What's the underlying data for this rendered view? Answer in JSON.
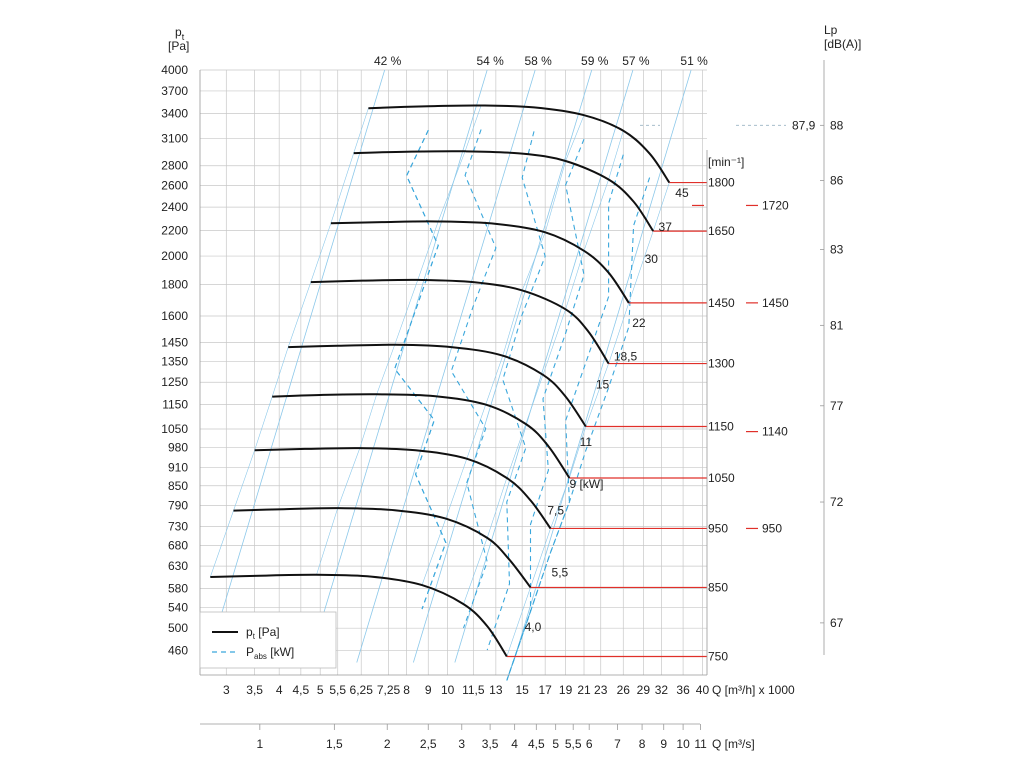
{
  "chart_data": {
    "type": "line",
    "title": "",
    "y_axis": {
      "label_main": "p",
      "label_sub": "t",
      "unit": "[Pa]",
      "scale": "log",
      "ticks": [
        4000,
        3700,
        3400,
        3100,
        2800,
        2600,
        2400,
        2200,
        2000,
        1800,
        1600,
        1450,
        1350,
        1250,
        1150,
        1050,
        980,
        910,
        850,
        790,
        730,
        680,
        630,
        580,
        540,
        500,
        460
      ],
      "range": [
        420,
        4000
      ]
    },
    "x_axis_flow_m3h": {
      "label": "Q [m³/h] x 1000",
      "scale": "log",
      "ticks": [
        "3",
        "3,5",
        "4",
        "4,5",
        "5",
        "5,5",
        "6,25",
        "7,25",
        "8",
        "9",
        "10",
        "11,5",
        "13",
        "15",
        "17",
        "19",
        "21",
        "23",
        "26",
        "29",
        "32",
        "36",
        "40"
      ],
      "tick_values": [
        3,
        3.5,
        4,
        4.5,
        5,
        5.5,
        6.25,
        7.25,
        8,
        9,
        10,
        11.5,
        13,
        15,
        17,
        19,
        21,
        23,
        26,
        29,
        32,
        36,
        40
      ],
      "range": [
        2.6,
        41
      ]
    },
    "x_axis_flow_m3s": {
      "label": "Q [m³/s]",
      "ticks": [
        "1",
        "1,5",
        "2",
        "2,5",
        "3",
        "3,5",
        "4",
        "4,5",
        "5",
        "5,5",
        "6",
        "7",
        "8",
        "9",
        "10",
        "11"
      ],
      "tick_values": [
        1,
        1.5,
        2,
        2.5,
        3,
        3.5,
        4,
        4.5,
        5,
        5.5,
        6,
        7,
        8,
        9,
        10,
        11
      ]
    },
    "right_axis_lp": {
      "label": "Lp",
      "unit": "[dB(A)]",
      "ticks": [
        "88",
        "86",
        "83",
        "81",
        "77",
        "72",
        "67"
      ],
      "tick_pa": [
        3255,
        2650,
        2050,
        1545,
        1145,
        800,
        510
      ]
    },
    "rpm_axis": {
      "label": "[min⁻¹]",
      "values": [
        "1800",
        "1650",
        "1450",
        "1300",
        "1150",
        "1050",
        "950",
        "850",
        "750"
      ],
      "end_pa": [
        2630,
        2195,
        1680,
        1340,
        1060,
        875,
        725,
        582,
        450
      ],
      "side_values": [
        "1720",
        "1450",
        "1140",
        "950"
      ],
      "side_pa": [
        2415,
        1680,
        1040,
        725
      ],
      "lp_marker": "87,9",
      "lp_marker_pa": 3255
    },
    "series": [
      {
        "name": "p_t [Pa]",
        "type": "pressure",
        "speed": "1800",
        "x": [
          6.5,
          9,
          12,
          16,
          21,
          26,
          30,
          33.4
        ],
        "y": [
          3470,
          3495,
          3505,
          3480,
          3380,
          3190,
          2930,
          2630
        ]
      },
      {
        "name": "p_t [Pa]",
        "type": "pressure",
        "speed": "1650",
        "x": [
          6,
          8,
          11,
          15,
          19,
          24,
          27.5,
          30.6
        ],
        "y": [
          2935,
          2950,
          2955,
          2930,
          2850,
          2660,
          2450,
          2195
        ]
      },
      {
        "name": "p_t [Pa]",
        "type": "pressure",
        "speed": "1450",
        "x": [
          5.3,
          7,
          9.5,
          13,
          17,
          21,
          24,
          26.8
        ],
        "y": [
          2260,
          2270,
          2275,
          2255,
          2185,
          2040,
          1880,
          1680
        ]
      },
      {
        "name": "p_t [Pa]",
        "type": "pressure",
        "speed": "1300",
        "x": [
          4.75,
          6.3,
          8.5,
          11.5,
          15,
          19,
          21.5,
          24
        ],
        "y": [
          1815,
          1825,
          1830,
          1815,
          1760,
          1640,
          1510,
          1340
        ]
      },
      {
        "name": "p_t [Pa]",
        "type": "pressure",
        "speed": "1150",
        "x": [
          4.2,
          5.5,
          7.5,
          10.2,
          13.5,
          16.8,
          19,
          21.2
        ],
        "y": [
          1425,
          1432,
          1437,
          1425,
          1380,
          1285,
          1185,
          1060
        ]
      },
      {
        "name": "p_t [Pa]",
        "type": "pressure",
        "speed": "1050",
        "x": [
          3.85,
          5,
          6.8,
          9.3,
          12.3,
          15.3,
          17.3,
          19.4
        ],
        "y": [
          1185,
          1192,
          1195,
          1187,
          1150,
          1070,
          985,
          875
        ]
      },
      {
        "name": "p_t [Pa]",
        "type": "pressure",
        "speed": "950",
        "x": [
          3.5,
          4.6,
          6.2,
          8.4,
          11.1,
          13.8,
          15.7,
          17.5
        ],
        "y": [
          970,
          975,
          978,
          970,
          940,
          875,
          805,
          725
        ]
      },
      {
        "name": "p_t [Pa]",
        "type": "pressure",
        "speed": "850",
        "x": [
          3.12,
          4.1,
          5.5,
          7.5,
          9.9,
          12.4,
          14,
          15.7
        ],
        "y": [
          775,
          779,
          782,
          776,
          752,
          700,
          645,
          582
        ]
      },
      {
        "name": "p_t [Pa]",
        "type": "pressure",
        "speed": "750",
        "x": [
          2.75,
          3.6,
          4.9,
          6.6,
          8.7,
          10.9,
          12.4,
          13.8
        ],
        "y": [
          605,
          608,
          610,
          606,
          587,
          547,
          504,
          450
        ]
      }
    ],
    "efficiency_lines": [
      {
        "label": "42 %",
        "start": [
          2.7,
          440
        ],
        "end": [
          7.1,
          4000
        ]
      },
      {
        "label": "54 %",
        "start": [
          4.7,
          440
        ],
        "end": [
          12.4,
          4000
        ]
      },
      {
        "label": "58 %",
        "start": [
          6.1,
          440
        ],
        "end": [
          16.1,
          4000
        ]
      },
      {
        "label": "59 %",
        "start": [
          8.3,
          440
        ],
        "end": [
          21.9,
          4000
        ]
      },
      {
        "label": "57 %",
        "start": [
          10.4,
          440
        ],
        "end": [
          27.4,
          4000
        ]
      },
      {
        "label": "51 %",
        "start": [
          14.3,
          440
        ],
        "end": [
          37.6,
          4000
        ]
      }
    ],
    "power_labels": [
      {
        "label": "45",
        "x": 34.5,
        "y": 2530
      },
      {
        "label": "37",
        "x": 31.5,
        "y": 2230
      },
      {
        "label": "30",
        "x": 29.2,
        "y": 1980
      },
      {
        "label": "22",
        "x": 27.3,
        "y": 1560
      },
      {
        "label": "18,5",
        "x": 24.7,
        "y": 1375
      },
      {
        "label": "15",
        "x": 22.4,
        "y": 1240
      },
      {
        "label": "11",
        "x": 20.5,
        "y": 1000
      },
      {
        "label": "9 [kW]",
        "x": 19.4,
        "y": 855
      },
      {
        "label": "7,5",
        "x": 17.2,
        "y": 775
      },
      {
        "label": "5,5",
        "x": 17.6,
        "y": 615
      },
      {
        "label": "4,0",
        "x": 15.2,
        "y": 502
      }
    ],
    "legend": {
      "position": "bottom-left",
      "items": [
        {
          "main": "p",
          "sub": "t",
          "rest": " [Pa]",
          "style": "solid",
          "color": "#111111"
        },
        {
          "main": "P",
          "sub": "abs",
          "rest": " [kW]",
          "style": "dashed",
          "color": "#3aa7dc"
        }
      ]
    },
    "grid": true,
    "colors": {
      "pressure_curve": "#111111",
      "power_curve": "#3aa7dc",
      "efficiency_line": "#8cc8ea",
      "speed_marker": "#e0302a",
      "grid": "#c8c8c8",
      "dotted_line": "#9ab4c4"
    }
  }
}
